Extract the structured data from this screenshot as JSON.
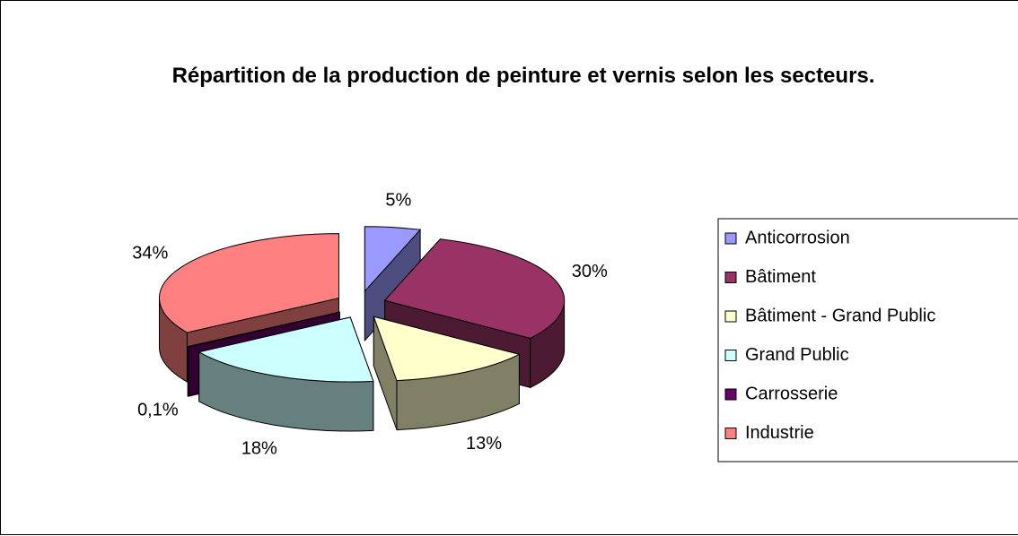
{
  "chart_data": {
    "type": "pie3d",
    "title": "Répartition de la production de peinture et vernis selon les secteurs.",
    "categories": [
      "Anticorrosion",
      "Bâtiment",
      "Bâtiment - Grand Public",
      "Grand Public",
      "Carrosserie",
      "Industrie"
    ],
    "values": [
      5,
      30,
      13,
      18,
      0.1,
      34
    ],
    "value_labels": [
      "5%",
      "30%",
      "13%",
      "18%",
      "0,1%",
      "34%"
    ],
    "colors": [
      "#9999ff",
      "#993366",
      "#ffffcc",
      "#ccffff",
      "#660066",
      "#ff8080"
    ],
    "legend": "right"
  }
}
